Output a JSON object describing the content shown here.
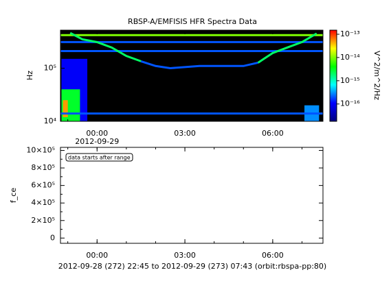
{
  "chart_data": [
    {
      "type": "spectrogram",
      "title": "RBSP-A/EMFISIS  HFR Spectra Data",
      "y_label": "Hz",
      "y_log": true,
      "xlim": [
        "2012-09-28 22:45",
        "2012-09-29 07:43"
      ],
      "xticks": [
        {
          "value": "2012-09-29 00:00",
          "label": "00:00"
        },
        {
          "value": "2012-09-29 03:00",
          "label": "03:00"
        },
        {
          "value": "2012-09-29 06:00",
          "label": "06:00"
        }
      ],
      "x_date_label": "2012-09-29",
      "ylim": [
        10000,
        520000
      ],
      "yticks": [
        {
          "value": 10000,
          "label": "10⁴"
        },
        {
          "value": 100000,
          "label": "10⁵"
        }
      ],
      "background": "#000000",
      "colorbar_label": "V^2/m^2/Hz",
      "z_log": true,
      "zlim": [
        1.8e-17,
        1.5e-13
      ],
      "zticks": [
        {
          "value": 1e-13,
          "label": "10⁻¹³"
        },
        {
          "value": 1e-14,
          "label": "10⁻¹⁴"
        },
        {
          "value": 1e-15,
          "label": "10⁻¹⁵"
        },
        {
          "value": 1e-16,
          "label": "10⁻¹⁶"
        }
      ],
      "colormap": [
        "#000080",
        "#0000ff",
        "#00ffff",
        "#00ff00",
        "#ffff00",
        "#ff0000"
      ],
      "series": [
        {
          "x": [
            "2012-09-28 22:45",
            "2012-09-29 07:43"
          ],
          "values": [
            420000,
            420000
          ],
          "z": 1e-14
        },
        {
          "x": [
            "2012-09-28 22:45",
            "2012-09-29 07:43"
          ],
          "values": [
            310000,
            310000
          ],
          "z": 2e-16
        },
        {
          "x": [
            "2012-09-28 22:45",
            "2012-09-29 07:43"
          ],
          "values": [
            210000,
            210000
          ],
          "z": 2e-16
        },
        {
          "x": [
            "2012-09-28 22:45",
            "2012-09-29 07:43"
          ],
          "values": [
            14000,
            14000
          ],
          "z": 2e-16
        },
        {
          "x": [
            "2012-09-28 23:05",
            "2012-09-28 23:30",
            "2012-09-29 00:00",
            "2012-09-29 00:30",
            "2012-09-29 01:00",
            "2012-09-29 01:30"
          ],
          "values": [
            460000,
            350000,
            310000,
            245000,
            170000,
            135000
          ],
          "z": 2e-15
        },
        {
          "x": [
            "2012-09-29 01:30",
            "2012-09-29 02:00",
            "2012-09-29 02:30",
            "2012-09-29 03:00",
            "2012-09-29 03:30",
            "2012-09-29 04:00",
            "2012-09-29 04:30",
            "2012-09-29 05:00",
            "2012-09-29 05:30"
          ],
          "values": [
            135000,
            110000,
            100000,
            105000,
            110000,
            110000,
            110000,
            110000,
            127000
          ],
          "z": 2e-16
        },
        {
          "x": [
            "2012-09-29 05:30",
            "2012-09-29 06:00",
            "2012-09-29 06:30",
            "2012-09-29 07:00",
            "2012-09-29 07:30"
          ],
          "values": [
            127000,
            193000,
            245000,
            310000,
            450000
          ],
          "z": 2e-15
        }
      ],
      "patches": [
        {
          "x": [
            "2012-09-28 22:47",
            "2012-09-28 23:40"
          ],
          "y": [
            10000,
            150000
          ],
          "z": 1e-16
        },
        {
          "x": [
            "2012-09-28 22:47",
            "2012-09-28 23:25"
          ],
          "y": [
            10000,
            40000
          ],
          "z": 3e-15
        },
        {
          "x": [
            "2012-09-28 22:50",
            "2012-09-28 23:00"
          ],
          "y": [
            12000,
            25000
          ],
          "z": 5e-14
        },
        {
          "x": [
            "2012-09-29 07:05",
            "2012-09-29 07:35"
          ],
          "y": [
            10000,
            20000
          ],
          "z": 3e-16
        }
      ]
    },
    {
      "type": "line",
      "y_label": "f_ce",
      "xlim": [
        "2012-09-28 22:45",
        "2012-09-29 07:43"
      ],
      "xticks": [
        {
          "value": "2012-09-29 00:00",
          "label": "00:00"
        },
        {
          "value": "2012-09-29 03:00",
          "label": "03:00"
        },
        {
          "value": "2012-09-29 06:00",
          "label": "06:00"
        }
      ],
      "x_label": "2012-09-28 (272) 22:45 to 2012-09-29 (273) 07:43 (orbit:rbspa-pp:80)",
      "ylim": [
        -60000,
        1035000
      ],
      "yticks": [
        0,
        {
          "value": 200000,
          "label": "2×10⁵"
        },
        {
          "value": 400000,
          "label": "4×10⁵"
        },
        {
          "value": 600000,
          "label": "6×10⁵"
        },
        {
          "value": 800000,
          "label": "8×10⁵"
        },
        {
          "value": 1000000,
          "label": "10×10⁵"
        }
      ],
      "annotation": "data starts after range"
    }
  ]
}
